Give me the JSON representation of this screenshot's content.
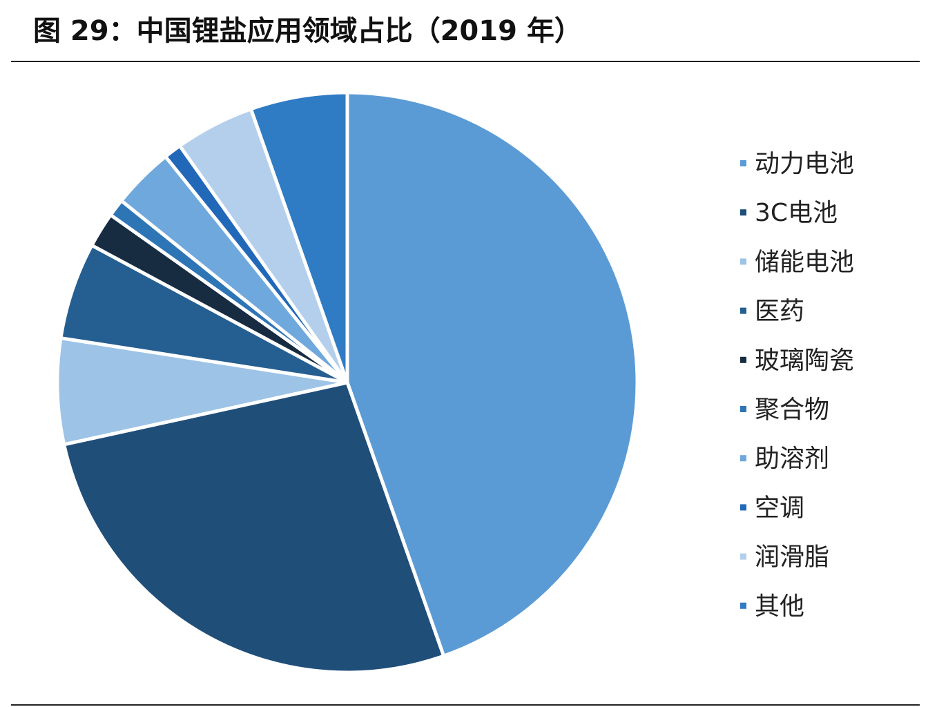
{
  "title": "图 29：中国锂盐应用领域占比（2019 年）",
  "chart_data": {
    "type": "pie",
    "title": "图 29：中国锂盐应用领域占比（2019 年）",
    "slices": [
      {
        "name": "动力电池",
        "value": 45.5,
        "color": "#5b9bd5"
      },
      {
        "name": "3C电池",
        "value": 27.5,
        "color": "#1f4e79"
      },
      {
        "name": "储能电池",
        "value": 6.0,
        "color": "#9dc3e6"
      },
      {
        "name": "医药",
        "value": 5.5,
        "color": "#255e91"
      },
      {
        "name": "玻璃陶瓷",
        "value": 2.0,
        "color": "#172b41"
      },
      {
        "name": "聚合物",
        "value": 1.0,
        "color": "#2e75b6"
      },
      {
        "name": "助溶剂",
        "value": 3.5,
        "color": "#6fa8dc"
      },
      {
        "name": "空调",
        "value": 1.0,
        "color": "#2268b8"
      },
      {
        "name": "润滑脂",
        "value": 4.5,
        "color": "#b4cfec"
      },
      {
        "name": "其他",
        "value": 5.5,
        "color": "#2f7bc4"
      }
    ],
    "legend_position": "right"
  }
}
